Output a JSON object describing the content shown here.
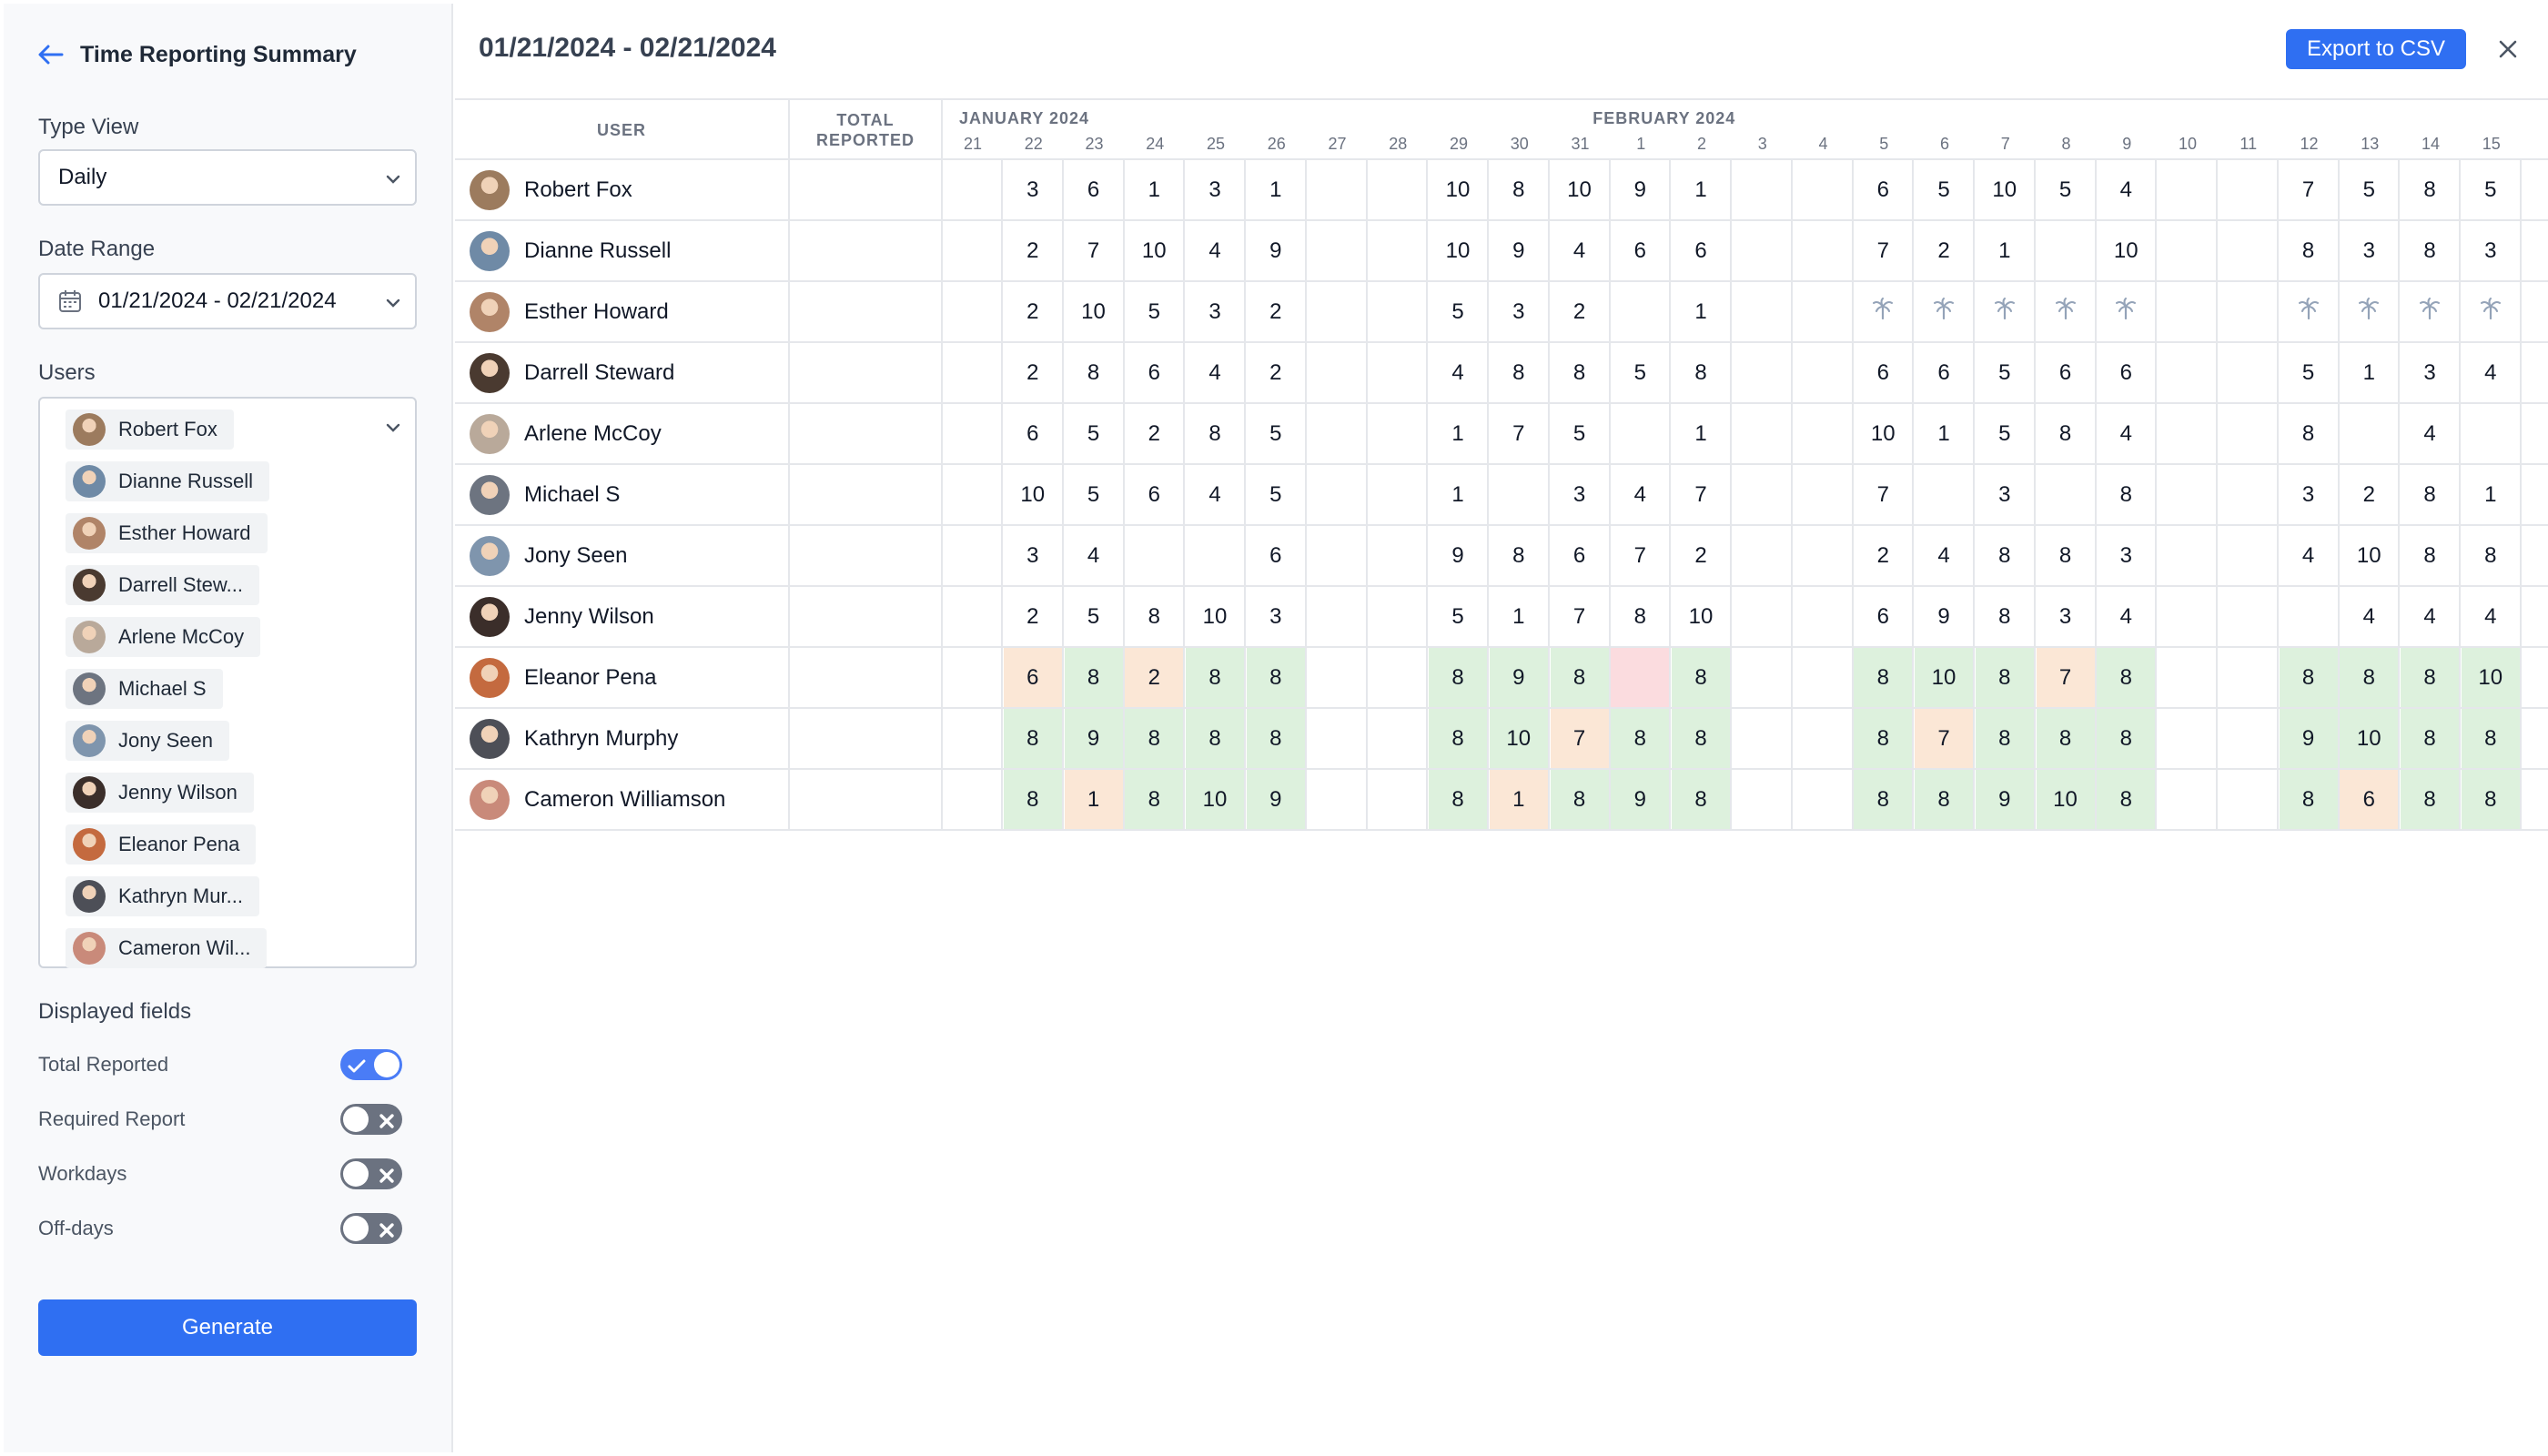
{
  "sidebar": {
    "title": "Time Reporting Summary",
    "type_view_label": "Type View",
    "type_view_value": "Daily",
    "date_range_label": "Date Range",
    "date_range_value": "01/21/2024 - 02/21/2024",
    "users_label": "Users",
    "displayed_fields_label": "Displayed fields",
    "toggles": [
      {
        "label": "Total Reported",
        "on": true
      },
      {
        "label": "Required Report",
        "on": false
      },
      {
        "label": "Workdays",
        "on": false
      },
      {
        "label": "Off-days",
        "on": false
      }
    ],
    "generate_label": "Generate"
  },
  "user_chips": [
    "Robert Fox",
    "Dianne Russell",
    "Esther Howard",
    "Darrell Stew...",
    "Arlene McCoy",
    "Michael S",
    "Jony Seen",
    "Jenny Wilson",
    "Eleanor Pena",
    "Kathryn Mur...",
    "Cameron Wil..."
  ],
  "main": {
    "title": "01/21/2024 - 02/21/2024",
    "export_label": "Export to CSV"
  },
  "table": {
    "user_header": "USER",
    "total_header": "TOTAL REPORTED",
    "months": [
      "JANUARY 2024",
      "FEBRUARY 2024"
    ],
    "days": [
      "21",
      "22",
      "23",
      "24",
      "25",
      "26",
      "27",
      "28",
      "29",
      "30",
      "31",
      "1",
      "2",
      "3",
      "4",
      "5",
      "6",
      "7",
      "8",
      "9",
      "10",
      "11",
      "12",
      "13",
      "14",
      "15"
    ],
    "rows": [
      {
        "name": "Robert Fox",
        "values": [
          "",
          "3",
          "6",
          "1",
          "3",
          "1",
          "",
          "",
          "10",
          "8",
          "10",
          "9",
          "1",
          "",
          "",
          "6",
          "5",
          "10",
          "5",
          "4",
          "",
          "",
          "7",
          "5",
          "8",
          "5"
        ]
      },
      {
        "name": "Dianne Russell",
        "values": [
          "",
          "2",
          "7",
          "10",
          "4",
          "9",
          "",
          "",
          "10",
          "9",
          "4",
          "6",
          "6",
          "",
          "",
          "7",
          "2",
          "1",
          "",
          "10",
          "",
          "",
          "8",
          "3",
          "8",
          "3"
        ]
      },
      {
        "name": "Esther Howard",
        "values": [
          "",
          "2",
          "10",
          "5",
          "3",
          "2",
          "",
          "",
          "5",
          "3",
          "2",
          "",
          "1",
          "",
          "",
          "*",
          "*",
          "*",
          "*",
          "*",
          "",
          "",
          "*",
          "*",
          "*",
          "*"
        ]
      },
      {
        "name": "Darrell Steward",
        "values": [
          "",
          "2",
          "8",
          "6",
          "4",
          "2",
          "",
          "",
          "4",
          "8",
          "8",
          "5",
          "8",
          "",
          "",
          "6",
          "6",
          "5",
          "6",
          "6",
          "",
          "",
          "5",
          "1",
          "3",
          "4"
        ]
      },
      {
        "name": "Arlene McCoy",
        "values": [
          "",
          "6",
          "5",
          "2",
          "8",
          "5",
          "",
          "",
          "1",
          "7",
          "5",
          "",
          "1",
          "",
          "",
          "10",
          "1",
          "5",
          "8",
          "4",
          "",
          "",
          "8",
          "",
          "4",
          ""
        ]
      },
      {
        "name": "Michael S",
        "values": [
          "",
          "10",
          "5",
          "6",
          "4",
          "5",
          "",
          "",
          "1",
          "",
          "3",
          "4",
          "7",
          "",
          "",
          "7",
          "",
          "3",
          "",
          "8",
          "",
          "",
          "3",
          "2",
          "8",
          "1"
        ]
      },
      {
        "name": "Jony Seen",
        "values": [
          "",
          "3",
          "4",
          "",
          "",
          "6",
          "",
          "",
          "9",
          "8",
          "6",
          "7",
          "2",
          "",
          "",
          "2",
          "4",
          "8",
          "8",
          "3",
          "",
          "",
          "4",
          "10",
          "8",
          "8"
        ]
      },
      {
        "name": "Jenny Wilson",
        "values": [
          "",
          "2",
          "5",
          "8",
          "10",
          "3",
          "",
          "",
          "5",
          "1",
          "7",
          "8",
          "10",
          "",
          "",
          "6",
          "9",
          "8",
          "3",
          "4",
          "",
          "",
          "",
          "4",
          "4",
          "4"
        ]
      },
      {
        "name": "Eleanor Pena",
        "values": [
          "",
          "6",
          "8",
          "2",
          "8",
          "8",
          "",
          "",
          "8",
          "9",
          "8",
          "",
          "8",
          "",
          "",
          "8",
          "10",
          "8",
          "7",
          "8",
          "",
          "",
          "8",
          "8",
          "8",
          "10"
        ],
        "colors": [
          "",
          "o",
          "g",
          "o",
          "g",
          "g",
          "",
          "",
          "g",
          "g",
          "g",
          "p",
          "g",
          "",
          "",
          "g",
          "g",
          "g",
          "o",
          "g",
          "",
          "",
          "g",
          "g",
          "g",
          "g"
        ]
      },
      {
        "name": "Kathryn Murphy",
        "values": [
          "",
          "8",
          "9",
          "8",
          "8",
          "8",
          "",
          "",
          "8",
          "10",
          "7",
          "8",
          "8",
          "",
          "",
          "8",
          "7",
          "8",
          "8",
          "8",
          "",
          "",
          "9",
          "10",
          "8",
          "8"
        ],
        "colors": [
          "",
          "g",
          "g",
          "g",
          "g",
          "g",
          "",
          "",
          "g",
          "g",
          "o",
          "g",
          "g",
          "",
          "",
          "g",
          "o",
          "g",
          "g",
          "g",
          "",
          "",
          "g",
          "g",
          "g",
          "g"
        ]
      },
      {
        "name": "Cameron Williamson",
        "values": [
          "",
          "8",
          "1",
          "8",
          "10",
          "9",
          "",
          "",
          "8",
          "1",
          "8",
          "9",
          "8",
          "",
          "",
          "8",
          "8",
          "9",
          "10",
          "8",
          "",
          "",
          "8",
          "6",
          "8",
          "8"
        ],
        "colors": [
          "",
          "g",
          "o",
          "g",
          "g",
          "g",
          "",
          "",
          "g",
          "o",
          "g",
          "g",
          "g",
          "",
          "",
          "g",
          "g",
          "g",
          "g",
          "g",
          "",
          "",
          "g",
          "o",
          "g",
          "g"
        ]
      }
    ]
  },
  "avatar_colors": [
    "#9c7b5e",
    "#6f8aa6",
    "#b08468",
    "#4a3a30",
    "#b9a99a",
    "#6d7480",
    "#7f95ad",
    "#3b2e2a",
    "#c46a3f",
    "#4d4f57",
    "#c98a7a"
  ]
}
